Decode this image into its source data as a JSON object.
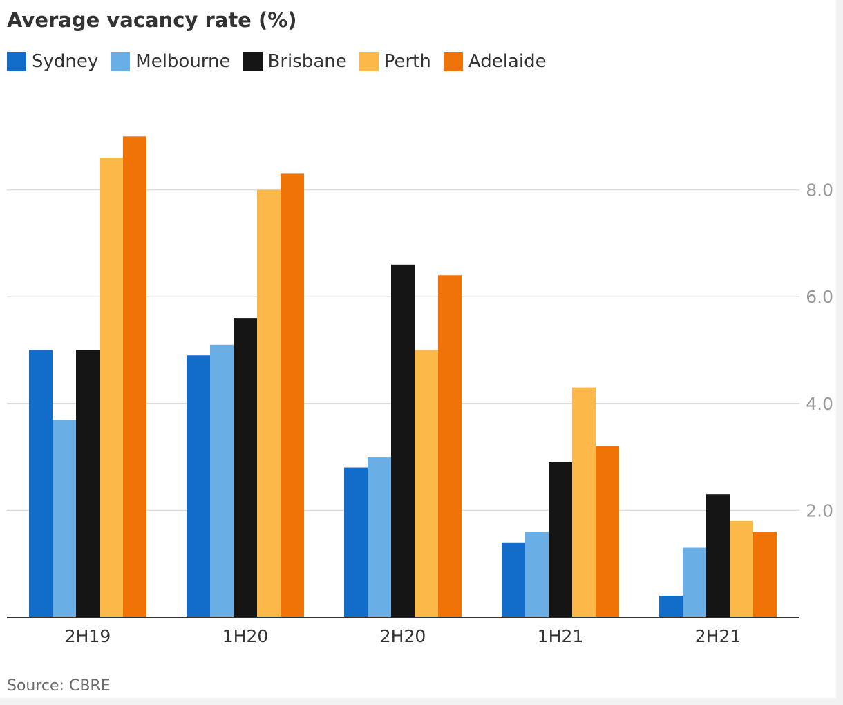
{
  "chart_data": {
    "type": "bar",
    "title": "Average vacancy rate (%)",
    "source": "Source: CBRE",
    "categories": [
      "2H19",
      "1H20",
      "2H20",
      "1H21",
      "2H21"
    ],
    "series": [
      {
        "name": "Sydney",
        "color": "#116dc9",
        "values": [
          5.0,
          4.9,
          2.8,
          1.4,
          0.4
        ]
      },
      {
        "name": "Melbourne",
        "color": "#6aaee6",
        "values": [
          3.7,
          5.1,
          3.0,
          1.6,
          1.3
        ]
      },
      {
        "name": "Brisbane",
        "color": "#151515",
        "values": [
          5.0,
          5.6,
          6.6,
          2.9,
          2.3
        ]
      },
      {
        "name": "Perth",
        "color": "#fdb84a",
        "values": [
          8.6,
          8.0,
          5.0,
          4.3,
          1.8
        ]
      },
      {
        "name": "Adelaide",
        "color": "#f07307",
        "values": [
          9.0,
          8.3,
          6.4,
          3.2,
          1.6
        ]
      }
    ],
    "y_ticks": [
      "2.0",
      "4.0",
      "6.0",
      "8.0"
    ],
    "ylim": [
      0,
      9
    ],
    "y_axis_side": "right",
    "grid": true,
    "legend_placement": "top-left"
  }
}
